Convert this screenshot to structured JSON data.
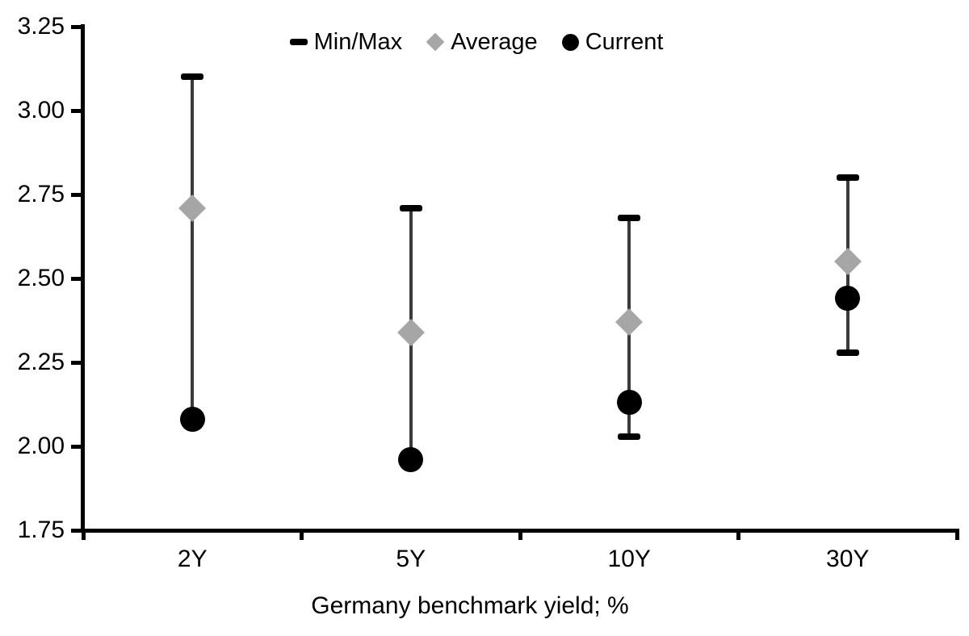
{
  "chart_data": {
    "type": "scatter",
    "subtype": "min-max-range-with-average-and-current",
    "title": "",
    "xlabel": "Germany benchmark yield; %",
    "ylabel": "",
    "categories": [
      "2Y",
      "5Y",
      "10Y",
      "30Y"
    ],
    "series": [
      {
        "name": "Min/Max",
        "marker": "dash",
        "color": "#000000",
        "min": [
          2.08,
          1.96,
          2.03,
          2.28
        ],
        "max": [
          3.1,
          2.71,
          2.68,
          2.8
        ]
      },
      {
        "name": "Average",
        "marker": "diamond",
        "color": "#a6a6a6",
        "values": [
          2.71,
          2.34,
          2.37,
          2.55
        ]
      },
      {
        "name": "Current",
        "marker": "circle",
        "color": "#000000",
        "values": [
          2.08,
          1.96,
          2.13,
          2.44
        ]
      }
    ],
    "ylim": [
      1.75,
      3.25
    ],
    "ytick_step": 0.25,
    "ytick_labels": [
      "3.25",
      "3.00",
      "2.75",
      "2.50",
      "2.25",
      "2.00",
      "1.75"
    ],
    "grid": false,
    "legend_position": "top-center",
    "legend_labels": [
      "Min/Max",
      "Average",
      "Current"
    ],
    "colors": {
      "axis": "#000000",
      "whisker": "#3a3a3a",
      "average_marker": "#a6a6a6",
      "current_marker": "#000000",
      "minmax_cap": "#000000",
      "background": "#ffffff"
    }
  }
}
